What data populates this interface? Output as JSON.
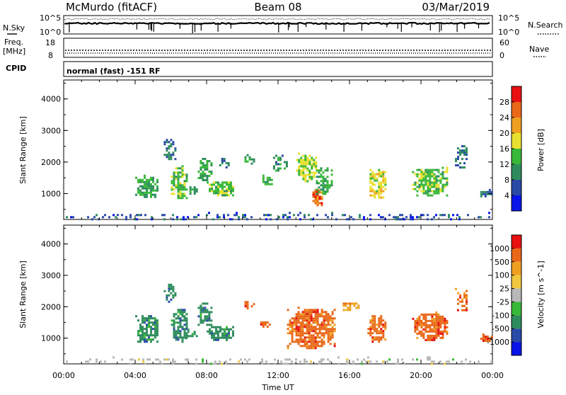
{
  "header": {
    "station": "McMurdo (fitACF)",
    "beam": "Beam 08",
    "date": "03/Mar/2019"
  },
  "noise_panel": {
    "left_label": "N.Sky",
    "right_label": "N.Search",
    "tick_top": "10^5",
    "tick_bottom": "10^0"
  },
  "freq_panel": {
    "left_label_line1": "Freq.",
    "left_label_line2": "[MHz]",
    "left_tick_top": "18",
    "left_tick_bottom": "8",
    "right_label": "Nave",
    "right_tick_top": "60",
    "right_tick_bottom": "0"
  },
  "cpid": {
    "label": "CPID",
    "value": "normal (fast) -151 RF"
  },
  "colors": {
    "power_scale": [
      "#0a14e8",
      "#2a4aa8",
      "#2e8c5c",
      "#38b838",
      "#e8e030",
      "#f0a020",
      "#e86818",
      "#e81010"
    ],
    "velocity_scale": [
      "#e81010",
      "#e86818",
      "#f0a020",
      "#f0c840",
      "#b8b8b8",
      "#38b838",
      "#2e8c5c",
      "#2a4aa8",
      "#0a14e8"
    ]
  },
  "chart_data": [
    {
      "type": "heatmap",
      "name": "power",
      "ylabel": "Slant Range [km]",
      "xlim": [
        0,
        24
      ],
      "ylim": [
        180,
        4600
      ],
      "y_ticks": [
        "1000",
        "2000",
        "3000",
        "4000"
      ],
      "colorbar_label": "Power [dB]",
      "colorbar_ticks": [
        "4",
        "8",
        "12",
        "16",
        "20",
        "24",
        "28"
      ],
      "colorbar_range": [
        0,
        32
      ],
      "features": [
        {
          "t0": 0.0,
          "t1": 24.0,
          "r0": 180,
          "r1": 420,
          "level": 6,
          "density": 0.25
        },
        {
          "t0": 4.0,
          "t1": 5.3,
          "r0": 900,
          "r1": 1600,
          "level": 12,
          "density": 0.75
        },
        {
          "t0": 5.6,
          "t1": 6.2,
          "r0": 2100,
          "r1": 2800,
          "level": 8,
          "density": 0.55
        },
        {
          "t0": 6.0,
          "t1": 6.9,
          "r0": 850,
          "r1": 1900,
          "level": 14,
          "density": 0.7
        },
        {
          "t0": 6.8,
          "t1": 7.5,
          "r0": 1000,
          "r1": 1300,
          "level": 12,
          "density": 0.7
        },
        {
          "t0": 7.5,
          "t1": 8.3,
          "r0": 1400,
          "r1": 2200,
          "level": 12,
          "density": 0.6
        },
        {
          "t0": 8.0,
          "t1": 9.5,
          "r0": 950,
          "r1": 1450,
          "level": 14,
          "density": 0.75
        },
        {
          "t0": 8.7,
          "t1": 9.2,
          "r0": 1800,
          "r1": 2200,
          "level": 8,
          "density": 0.5
        },
        {
          "t0": 10.0,
          "t1": 10.7,
          "r0": 1950,
          "r1": 2250,
          "level": 12,
          "density": 0.55
        },
        {
          "t0": 11.0,
          "t1": 11.6,
          "r0": 1300,
          "r1": 1600,
          "level": 12,
          "density": 0.6
        },
        {
          "t0": 11.6,
          "t1": 12.5,
          "r0": 1700,
          "r1": 2300,
          "level": 10,
          "density": 0.4
        },
        {
          "t0": 13.0,
          "t1": 14.1,
          "r0": 1400,
          "r1": 2300,
          "level": 16,
          "density": 0.75
        },
        {
          "t0": 13.8,
          "t1": 14.5,
          "r0": 650,
          "r1": 1200,
          "level": 26,
          "density": 0.85
        },
        {
          "t0": 14.0,
          "t1": 15.0,
          "r0": 1000,
          "r1": 1900,
          "level": 12,
          "density": 0.55
        },
        {
          "t0": 17.0,
          "t1": 18.0,
          "r0": 850,
          "r1": 1850,
          "level": 18,
          "density": 0.75
        },
        {
          "t0": 19.5,
          "t1": 21.5,
          "r0": 950,
          "r1": 1850,
          "level": 14,
          "density": 0.75
        },
        {
          "t0": 21.9,
          "t1": 22.6,
          "r0": 1800,
          "r1": 2600,
          "level": 8,
          "density": 0.55
        },
        {
          "t0": 23.2,
          "t1": 24.0,
          "r0": 900,
          "r1": 1150,
          "level": 8,
          "density": 0.6
        }
      ]
    },
    {
      "type": "heatmap",
      "name": "velocity",
      "xlabel": "Time UT",
      "ylabel": "Slant Range [km]",
      "xlim": [
        0,
        24
      ],
      "ylim": [
        180,
        4600
      ],
      "x_ticks": [
        "00:00",
        "04:00",
        "08:00",
        "12:00",
        "16:00",
        "20:00",
        "00:00"
      ],
      "y_ticks": [
        "1000",
        "2000",
        "3000",
        "4000"
      ],
      "colorbar_label": "Velocity [m s^-1]",
      "colorbar_ticks": [
        "1000",
        "500",
        "100",
        "25",
        "-25",
        "-100",
        "-500",
        "-1000"
      ],
      "features": [
        {
          "t0": 0.0,
          "t1": 24.0,
          "r0": 180,
          "r1": 420,
          "level": 4,
          "density": 0.2
        },
        {
          "t0": 4.0,
          "t1": 5.3,
          "r0": 900,
          "r1": 1800,
          "level": 6,
          "density": 0.75
        },
        {
          "t0": 5.6,
          "t1": 6.2,
          "r0": 2100,
          "r1": 2800,
          "level": 6,
          "density": 0.55
        },
        {
          "t0": 6.0,
          "t1": 6.9,
          "r0": 850,
          "r1": 2000,
          "level": 6,
          "density": 0.7
        },
        {
          "t0": 6.8,
          "t1": 7.5,
          "r0": 1000,
          "r1": 1300,
          "level": 6,
          "density": 0.7
        },
        {
          "t0": 7.5,
          "t1": 8.3,
          "r0": 1400,
          "r1": 2200,
          "level": 6,
          "density": 0.6
        },
        {
          "t0": 8.0,
          "t1": 9.5,
          "r0": 950,
          "r1": 1450,
          "level": 6,
          "density": 0.7
        },
        {
          "t0": 10.0,
          "t1": 10.7,
          "r0": 1950,
          "r1": 2250,
          "level": 1,
          "density": 0.55
        },
        {
          "t0": 11.0,
          "t1": 11.6,
          "r0": 1300,
          "r1": 1600,
          "level": 1,
          "density": 0.6
        },
        {
          "t0": 12.5,
          "t1": 15.2,
          "r0": 700,
          "r1": 2000,
          "level": 1,
          "density": 0.8
        },
        {
          "t0": 15.5,
          "t1": 16.5,
          "r0": 1900,
          "r1": 2200,
          "level": 2,
          "density": 0.45
        },
        {
          "t0": 17.0,
          "t1": 18.0,
          "r0": 900,
          "r1": 1800,
          "level": 1,
          "density": 0.75
        },
        {
          "t0": 19.5,
          "t1": 21.5,
          "r0": 950,
          "r1": 1850,
          "level": 1,
          "density": 0.75
        },
        {
          "t0": 21.9,
          "t1": 22.6,
          "r0": 1800,
          "r1": 2600,
          "level": 1,
          "density": 0.55
        },
        {
          "t0": 23.2,
          "t1": 24.0,
          "r0": 900,
          "r1": 1150,
          "level": 1,
          "density": 0.6
        }
      ]
    }
  ]
}
